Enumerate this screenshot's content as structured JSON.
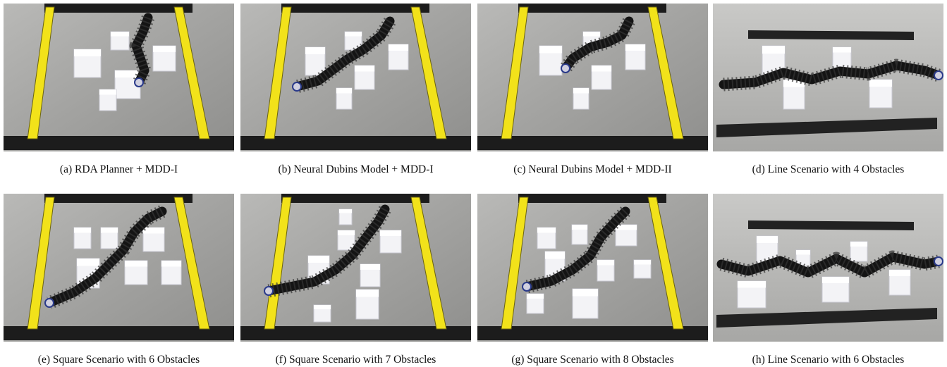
{
  "figure": {
    "panels": [
      {
        "caption": "(a) RDA Planner + MDD-I"
      },
      {
        "caption": "(b) Neural Dubins Model + MDD-I"
      },
      {
        "caption": "(c) Neural Dubins Model + MDD-II"
      },
      {
        "caption": "(d) Line Scenario with 4 Obstacles"
      },
      {
        "caption": "(e) Square Scenario with 6 Obstacles"
      },
      {
        "caption": "(f) Square Scenario with 7 Obstacles"
      },
      {
        "caption": "(g) Square Scenario with 8 Obstacles"
      },
      {
        "caption": "(h) Line Scenario with 6 Obstacles"
      }
    ]
  }
}
